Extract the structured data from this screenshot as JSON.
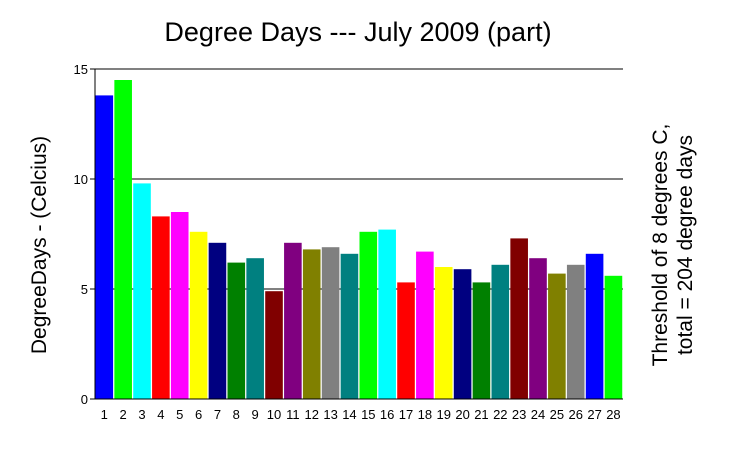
{
  "chart_data": {
    "type": "bar",
    "title": "Degree Days --- July 2009 (part)",
    "xlabel": "",
    "ylabel": "DegreeDays - (Celcius)",
    "right_annotation": [
      "Threshold of  8 degrees C,",
      "total = 204 degree days"
    ],
    "categories": [
      "1",
      "2",
      "3",
      "4",
      "5",
      "6",
      "7",
      "8",
      "9",
      "10",
      "11",
      "12",
      "13",
      "14",
      "15",
      "16",
      "17",
      "18",
      "19",
      "20",
      "21",
      "22",
      "23",
      "24",
      "25",
      "26",
      "27",
      "28"
    ],
    "values": [
      13.8,
      14.5,
      9.8,
      8.3,
      8.5,
      7.6,
      7.1,
      6.2,
      6.4,
      4.9,
      7.1,
      6.8,
      6.9,
      6.6,
      7.6,
      7.7,
      5.3,
      6.7,
      6.0,
      5.9,
      5.3,
      6.1,
      7.3,
      6.4,
      5.7,
      6.1,
      6.6,
      5.6
    ],
    "colors": [
      "#0000ff",
      "#00ff00",
      "#00ffff",
      "#ff0000",
      "#ff00ff",
      "#ffff00",
      "#000080",
      "#008000",
      "#008080",
      "#800000",
      "#800080",
      "#808000",
      "#808080",
      "#008080",
      "#00ff00",
      "#00ffff",
      "#ff0000",
      "#ff00ff",
      "#ffff00",
      "#000080",
      "#008000",
      "#008080",
      "#800000",
      "#800080",
      "#808000",
      "#808080",
      "#0000ff",
      "#00ff00"
    ],
    "ylim": [
      0,
      15
    ],
    "yticks": [
      "0",
      "5",
      "10",
      "15"
    ],
    "grid": true
  }
}
